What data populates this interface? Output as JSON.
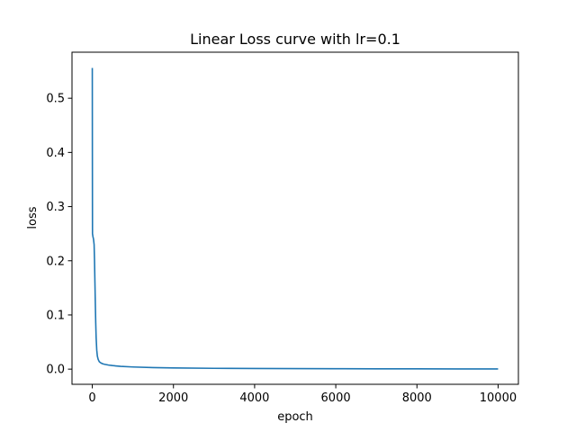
{
  "chart_data": {
    "type": "line",
    "title": "Linear Loss curve with lr=0.1",
    "xlabel": "epoch",
    "ylabel": "loss",
    "xlim": [
      -500,
      10500
    ],
    "ylim": [
      -0.028,
      0.585
    ],
    "xticks": [
      0,
      2000,
      4000,
      6000,
      8000,
      10000
    ],
    "xtick_labels": [
      "0",
      "2000",
      "4000",
      "6000",
      "8000",
      "10000"
    ],
    "yticks": [
      0.0,
      0.1,
      0.2,
      0.3,
      0.4,
      0.5
    ],
    "ytick_labels": [
      "0.0",
      "0.1",
      "0.2",
      "0.3",
      "0.4",
      "0.5"
    ],
    "grid": false,
    "series": [
      {
        "color": "#1f77b4",
        "x": [
          0,
          2,
          5,
          15,
          30,
          45,
          55,
          65,
          75,
          85,
          95,
          110,
          125,
          145,
          170,
          200,
          250,
          300,
          400,
          500,
          700,
          1000,
          1500,
          2000,
          3000,
          4000,
          5000,
          6000,
          7000,
          8000,
          9000,
          10000
        ],
        "y": [
          0.556,
          0.4,
          0.25,
          0.245,
          0.24,
          0.23,
          0.2,
          0.16,
          0.12,
          0.085,
          0.058,
          0.035,
          0.024,
          0.018,
          0.014,
          0.012,
          0.01,
          0.009,
          0.0075,
          0.0065,
          0.0052,
          0.004,
          0.0028,
          0.0022,
          0.0015,
          0.0011,
          0.0009,
          0.0007,
          0.0006,
          0.0005,
          0.0004,
          0.0003
        ]
      }
    ]
  }
}
